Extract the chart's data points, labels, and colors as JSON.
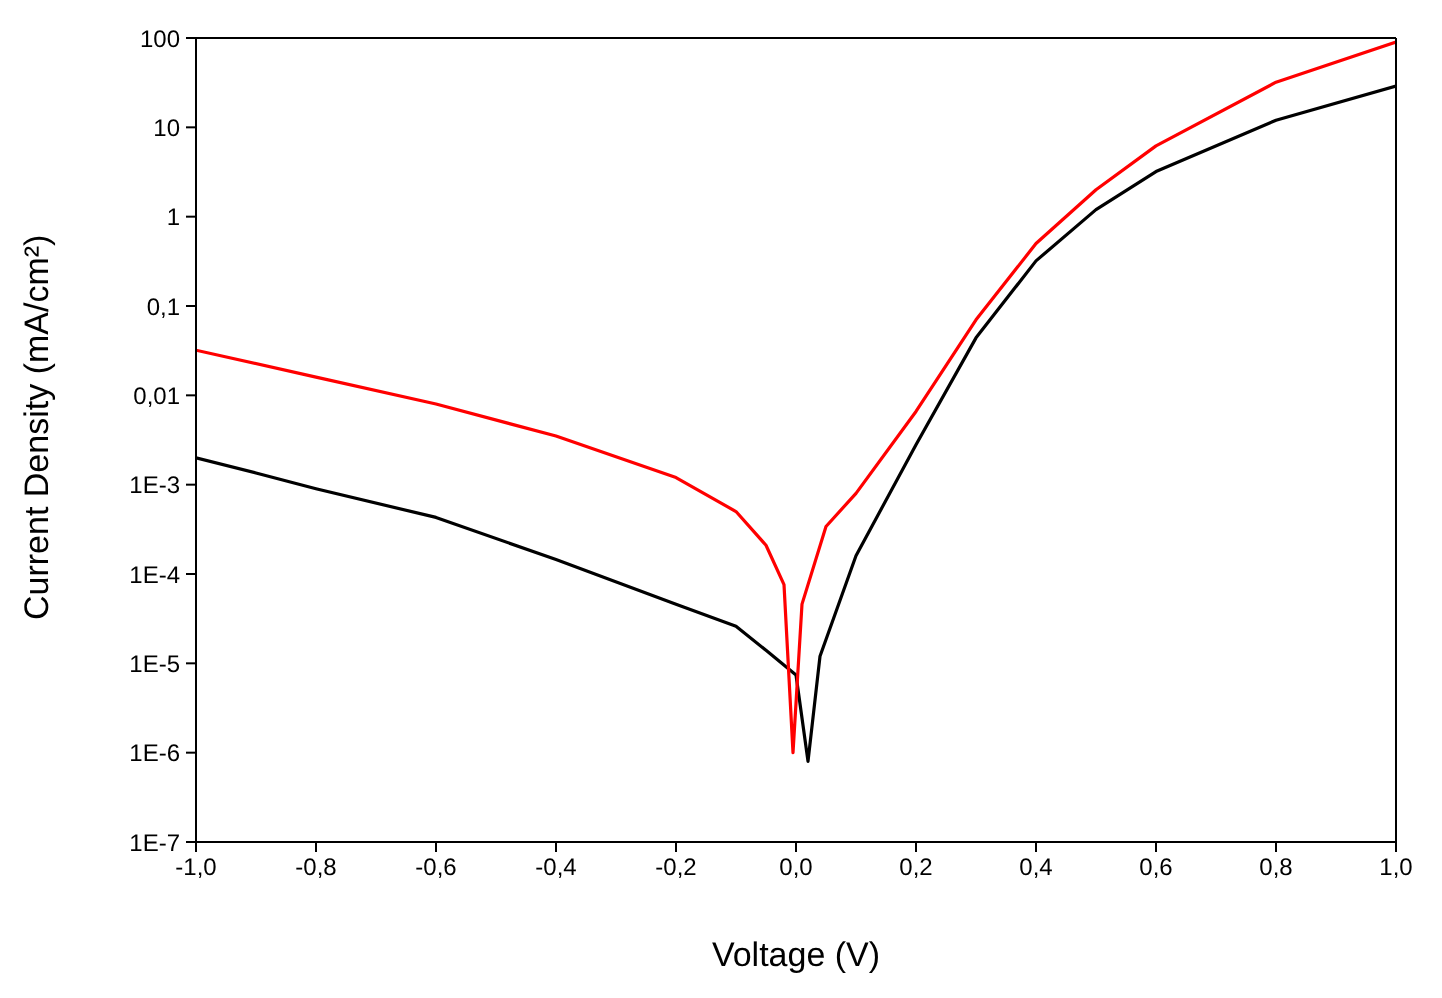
{
  "chart_data": {
    "type": "line",
    "xlabel": "Voltage (V)",
    "ylabel": "Current Density (mA/cm²)",
    "log": "y",
    "xlim": [
      -1,
      1
    ],
    "xticks": [
      {
        "value": -1,
        "label": "-1,0"
      },
      {
        "value": -0.8,
        "label": "-0,8"
      },
      {
        "value": -0.6,
        "label": "-0,6"
      },
      {
        "value": -0.4,
        "label": "-0,4"
      },
      {
        "value": -0.2,
        "label": "-0,2"
      },
      {
        "value": 0,
        "label": "0,0"
      },
      {
        "value": 0.2,
        "label": "0,2"
      },
      {
        "value": 0.4,
        "label": "0,4"
      },
      {
        "value": 0.6,
        "label": "0,6"
      },
      {
        "value": 0.8,
        "label": "0,8"
      },
      {
        "value": 1,
        "label": "1,0"
      }
    ],
    "ylim": [
      1e-07,
      100
    ],
    "yticks": [
      {
        "value": 1e-07,
        "label": "1E-7"
      },
      {
        "value": 1e-06,
        "label": "1E-6"
      },
      {
        "value": 1e-05,
        "label": "1E-5"
      },
      {
        "value": 0.0001,
        "label": "1E-4"
      },
      {
        "value": 0.001,
        "label": "1E-3"
      },
      {
        "value": 0.01,
        "label": "0,01"
      },
      {
        "value": 0.1,
        "label": "0,1"
      },
      {
        "value": 1,
        "label": "1"
      },
      {
        "value": 10,
        "label": "10"
      },
      {
        "value": 100,
        "label": "100"
      }
    ],
    "marker": "none",
    "line_style": "solid",
    "grid": false,
    "legend": false,
    "series": [
      {
        "color": "#000000",
        "x": [
          -1,
          -0.9,
          -0.8,
          -0.6,
          -0.4,
          -0.2,
          -0.1,
          -0.05,
          0,
          0.02,
          0.04,
          0.1,
          0.2,
          0.3,
          0.4,
          0.5,
          0.6,
          0.8,
          1
        ],
        "values": [
          0.002,
          0.00135,
          0.0009,
          0.00043,
          0.000145,
          4.6e-05,
          2.6e-05,
          1.4e-05,
          7.4e-06,
          8e-07,
          1.2e-05,
          0.00016,
          0.0028,
          0.044,
          0.32,
          1.2,
          3.2,
          12,
          29
        ]
      },
      {
        "color": "#ff0000",
        "x": [
          -1,
          -0.8,
          -0.6,
          -0.4,
          -0.2,
          -0.1,
          -0.05,
          -0.02,
          -0.005,
          0.01,
          0.05,
          0.1,
          0.2,
          0.3,
          0.4,
          0.5,
          0.6,
          0.8,
          1
        ],
        "values": [
          0.032,
          0.016,
          0.008,
          0.0035,
          0.0012,
          0.0005,
          0.00021,
          7.6e-05,
          1e-06,
          4.6e-05,
          0.00034,
          0.0008,
          0.0066,
          0.07,
          0.5,
          2,
          6.2,
          32,
          90
        ]
      }
    ]
  }
}
